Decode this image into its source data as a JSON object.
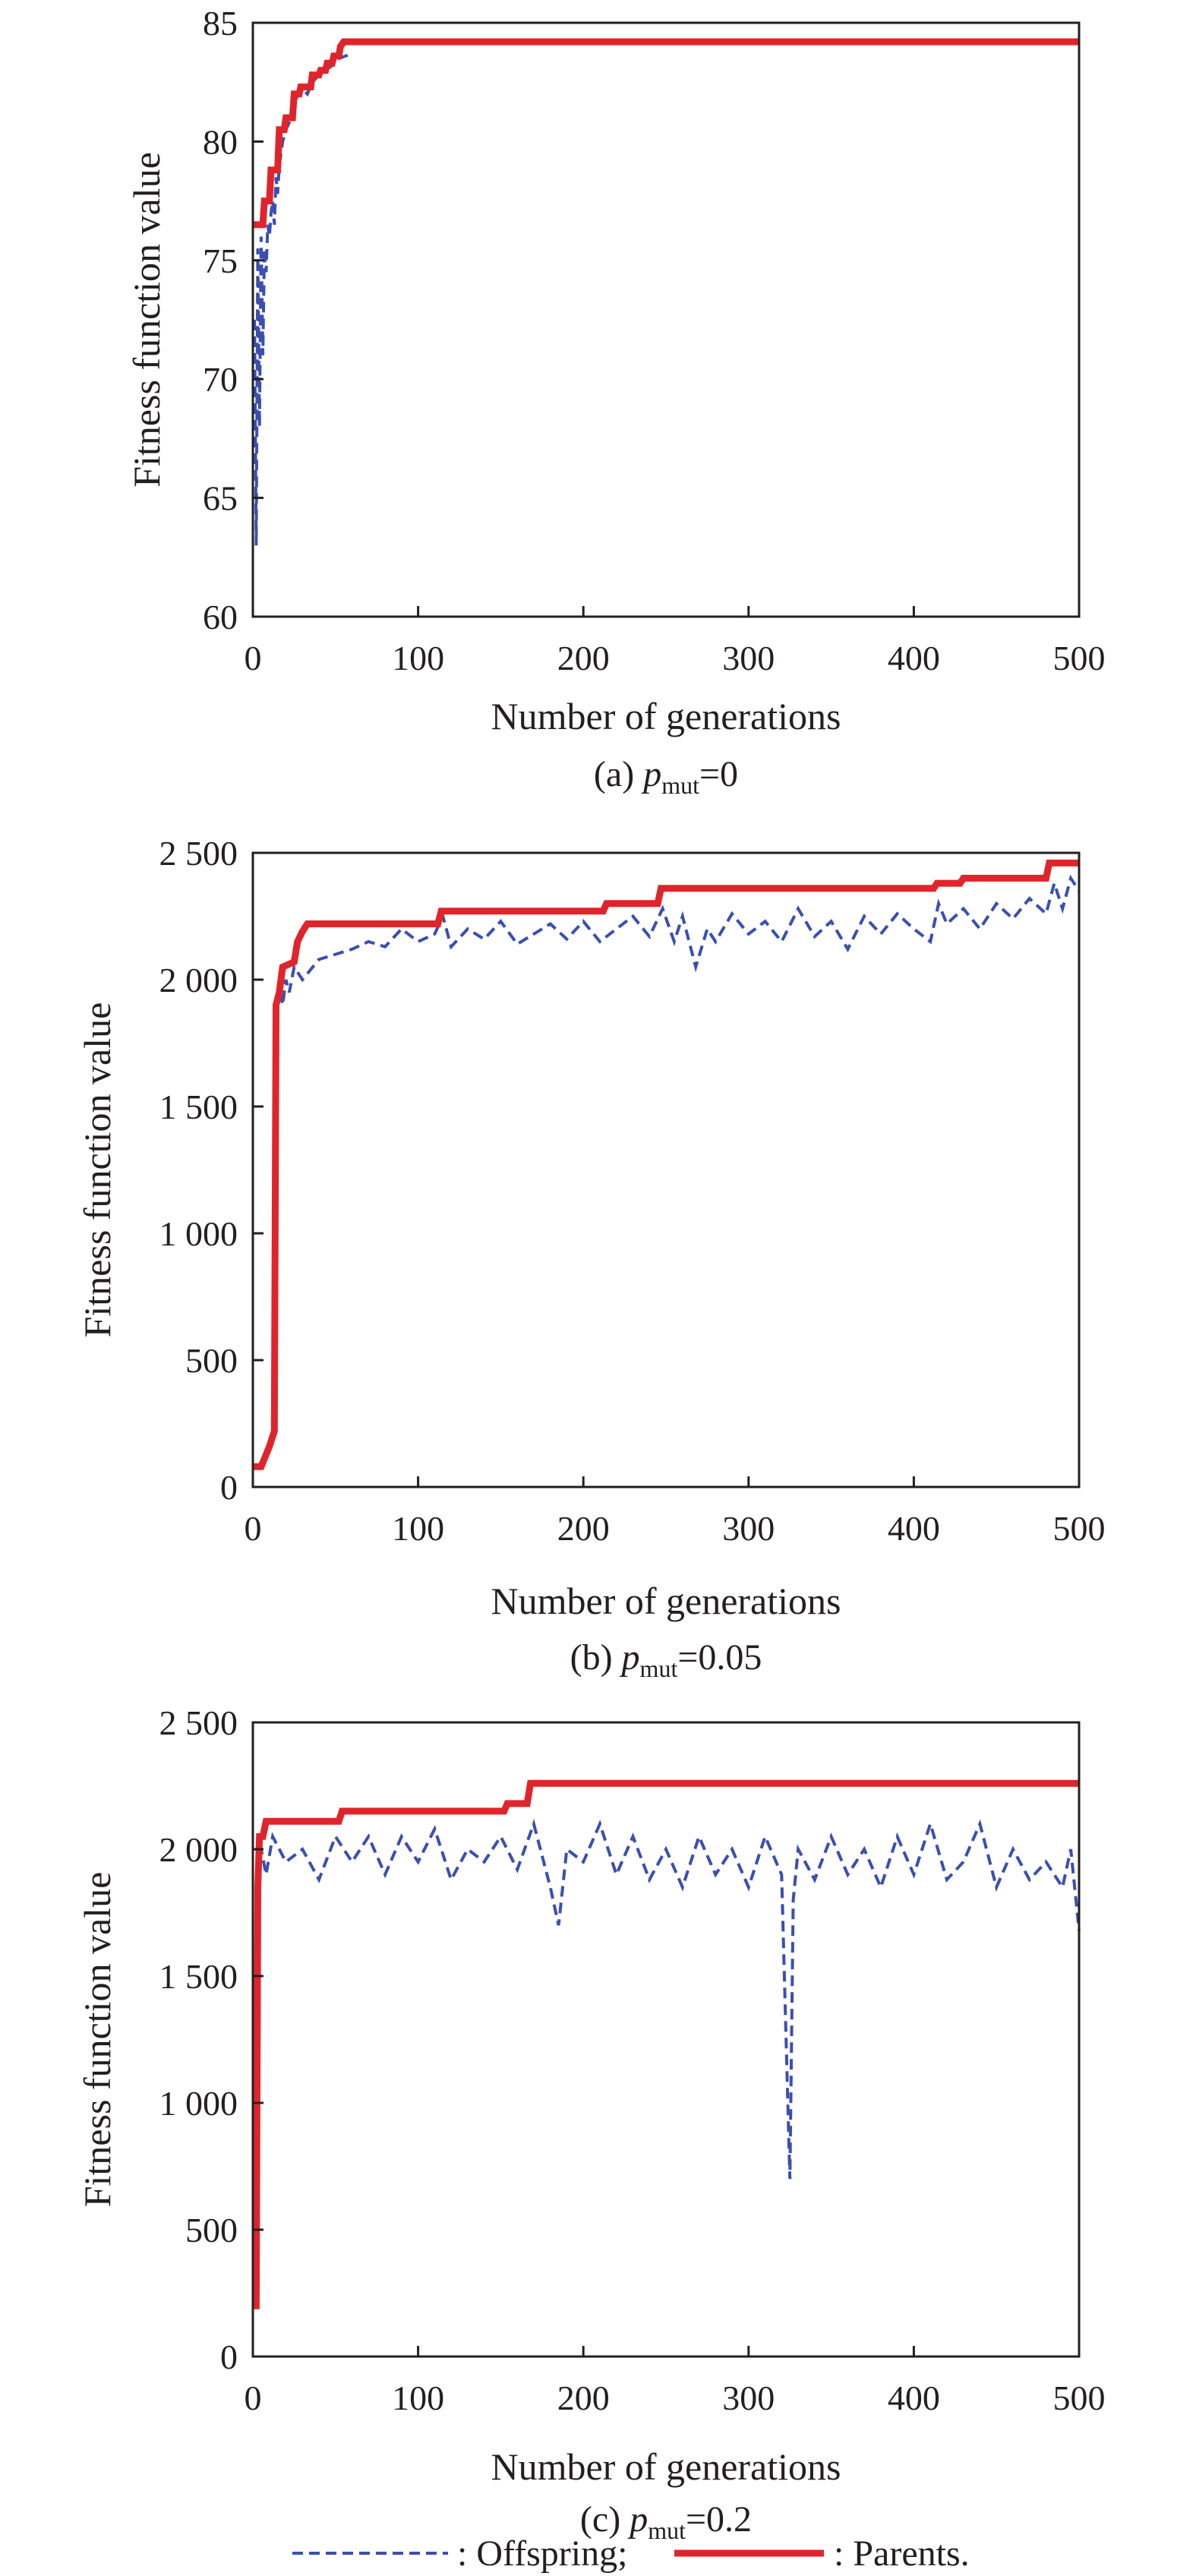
{
  "colors": {
    "offspring": "#3b4fb0",
    "parents": "#e0242b",
    "axis": "#231f20"
  },
  "legend": {
    "offspring_label": ": Offspring;",
    "parents_label": ": Parents."
  },
  "chart_data": [
    {
      "type": "line",
      "caption": {
        "prefix": "(a) ",
        "var": "p",
        "sub": "mut",
        "suffix": "=0"
      },
      "xlabel": "Number of generations",
      "ylabel": "Fitness function value",
      "xlim": [
        0,
        500
      ],
      "ylim": [
        60,
        85
      ],
      "xticks": [
        0,
        100,
        200,
        300,
        400,
        500
      ],
      "xtick_labels": [
        "0",
        "100",
        "200",
        "300",
        "400",
        "500"
      ],
      "yticks": [
        60,
        65,
        70,
        75,
        80,
        85
      ],
      "ytick_labels": [
        "60",
        "65",
        "70",
        "75",
        "80",
        "85"
      ],
      "series": [
        {
          "name": "Parents",
          "style": "solid",
          "x": [
            0,
            6,
            7,
            10,
            11,
            15,
            16,
            19,
            20,
            24,
            25,
            28,
            29,
            35,
            36,
            40,
            41,
            44,
            45,
            48,
            49,
            52,
            53,
            55,
            500
          ],
          "y": [
            76.5,
            76.5,
            77.5,
            77.5,
            78.8,
            78.8,
            80.5,
            80.5,
            81.0,
            81.0,
            82.0,
            82.0,
            82.3,
            82.3,
            82.8,
            82.8,
            83.0,
            83.0,
            83.3,
            83.3,
            83.6,
            83.6,
            84.0,
            84.2,
            84.2
          ]
        },
        {
          "name": "Offspring",
          "style": "dashed",
          "x": [
            1,
            2,
            3,
            4,
            5,
            6,
            7,
            8,
            9,
            10,
            11,
            12,
            13,
            14,
            15,
            16,
            17,
            18,
            20,
            22,
            24,
            26,
            28,
            30,
            33,
            36,
            40,
            44,
            48,
            52,
            56,
            60
          ],
          "y": [
            72.5,
            63.0,
            75.5,
            68.0,
            76.0,
            71.0,
            75.5,
            74.5,
            76.5,
            76.0,
            77.0,
            77.5,
            76.5,
            78.5,
            77.8,
            79.0,
            79.5,
            80.0,
            80.5,
            80.8,
            81.5,
            81.8,
            82.0,
            82.2,
            82.0,
            82.5,
            82.8,
            83.0,
            83.2,
            83.5,
            83.6,
            83.7
          ]
        }
      ]
    },
    {
      "type": "line",
      "caption": {
        "prefix": "(b) ",
        "var": "p",
        "sub": "mut",
        "suffix": "=0.05"
      },
      "xlabel": "Number of generations",
      "ylabel": "Fitness function value",
      "xlim": [
        0,
        500
      ],
      "ylim": [
        0,
        2500
      ],
      "xticks": [
        0,
        100,
        200,
        300,
        400,
        500
      ],
      "xtick_labels": [
        "0",
        "100",
        "200",
        "300",
        "400",
        "500"
      ],
      "yticks": [
        0,
        500,
        1000,
        1500,
        2000,
        2500
      ],
      "ytick_labels": [
        "0",
        "500",
        "1 000",
        "1 500",
        "2 000",
        "2 500"
      ],
      "series": [
        {
          "name": "Parents",
          "style": "solid",
          "x": [
            0,
            5,
            10,
            13,
            14,
            16,
            18,
            25,
            27,
            30,
            33,
            112,
            114,
            212,
            214,
            245,
            247,
            412,
            414,
            428,
            430,
            480,
            482,
            500
          ],
          "y": [
            80,
            80,
            160,
            220,
            1900,
            1950,
            2050,
            2070,
            2150,
            2190,
            2220,
            2220,
            2270,
            2270,
            2300,
            2300,
            2360,
            2360,
            2380,
            2380,
            2400,
            2400,
            2460,
            2460
          ]
        },
        {
          "name": "Offspring",
          "style": "dashed",
          "x": [
            14,
            16,
            18,
            20,
            22,
            25,
            30,
            40,
            50,
            60,
            70,
            80,
            90,
            100,
            110,
            115,
            120,
            130,
            140,
            150,
            160,
            170,
            180,
            190,
            200,
            210,
            220,
            230,
            240,
            248,
            255,
            260,
            268,
            275,
            280,
            290,
            300,
            310,
            320,
            330,
            340,
            350,
            360,
            370,
            380,
            390,
            400,
            410,
            415,
            420,
            430,
            440,
            450,
            460,
            470,
            480,
            485,
            490,
            495,
            500
          ],
          "y": [
            1880,
            1980,
            1900,
            2000,
            1950,
            2050,
            2000,
            2080,
            2100,
            2120,
            2150,
            2130,
            2200,
            2150,
            2180,
            2250,
            2130,
            2200,
            2160,
            2230,
            2140,
            2180,
            2220,
            2160,
            2230,
            2150,
            2200,
            2250,
            2170,
            2280,
            2150,
            2250,
            2050,
            2200,
            2150,
            2260,
            2180,
            2230,
            2150,
            2280,
            2170,
            2230,
            2120,
            2250,
            2180,
            2260,
            2200,
            2150,
            2300,
            2220,
            2280,
            2200,
            2300,
            2240,
            2320,
            2260,
            2380,
            2280,
            2400,
            2350
          ]
        }
      ]
    },
    {
      "type": "line",
      "caption": {
        "prefix": "(c) ",
        "var": "p",
        "sub": "mut",
        "suffix": "=0.2"
      },
      "xlabel": "Number of generations",
      "ylabel": "Fitness function value",
      "xlim": [
        0,
        500
      ],
      "ylim": [
        0,
        2500
      ],
      "xticks": [
        0,
        100,
        200,
        300,
        400,
        500
      ],
      "xtick_labels": [
        "0",
        "100",
        "200",
        "300",
        "400",
        "500"
      ],
      "yticks": [
        0,
        500,
        1000,
        1500,
        2000,
        2500
      ],
      "ytick_labels": [
        "0",
        "500",
        "1 000",
        "1 500",
        "2 000",
        "2 500"
      ],
      "series": [
        {
          "name": "Parents",
          "style": "solid",
          "x": [
            0,
            2,
            3,
            4,
            6,
            8,
            10,
            52,
            54,
            152,
            154,
            166,
            168,
            500
          ],
          "y": [
            200,
            200,
            1850,
            2050,
            2050,
            2110,
            2110,
            2110,
            2150,
            2150,
            2180,
            2180,
            2260,
            2260
          ]
        },
        {
          "name": "Offspring",
          "style": "dashed",
          "x": [
            2,
            3,
            5,
            8,
            12,
            20,
            30,
            40,
            50,
            60,
            70,
            80,
            90,
            100,
            110,
            120,
            130,
            140,
            150,
            160,
            170,
            180,
            185,
            190,
            200,
            210,
            220,
            230,
            240,
            250,
            260,
            270,
            280,
            290,
            300,
            310,
            320,
            325,
            327,
            330,
            340,
            350,
            360,
            370,
            380,
            390,
            400,
            410,
            420,
            430,
            440,
            450,
            460,
            470,
            480,
            490,
            495,
            500
          ],
          "y": [
            400,
            1950,
            2000,
            1900,
            2050,
            1950,
            2000,
            1880,
            2050,
            1950,
            2050,
            1900,
            2050,
            1950,
            2080,
            1880,
            2000,
            1950,
            2050,
            1920,
            2100,
            1850,
            1700,
            2000,
            1950,
            2100,
            1900,
            2050,
            1880,
            2000,
            1850,
            2050,
            1900,
            2000,
            1850,
            2050,
            1900,
            700,
            1800,
            2000,
            1880,
            2050,
            1900,
            2000,
            1850,
            2050,
            1900,
            2100,
            1880,
            1950,
            2100,
            1850,
            2000,
            1880,
            1950,
            1850,
            2000,
            1680
          ]
        }
      ]
    }
  ]
}
